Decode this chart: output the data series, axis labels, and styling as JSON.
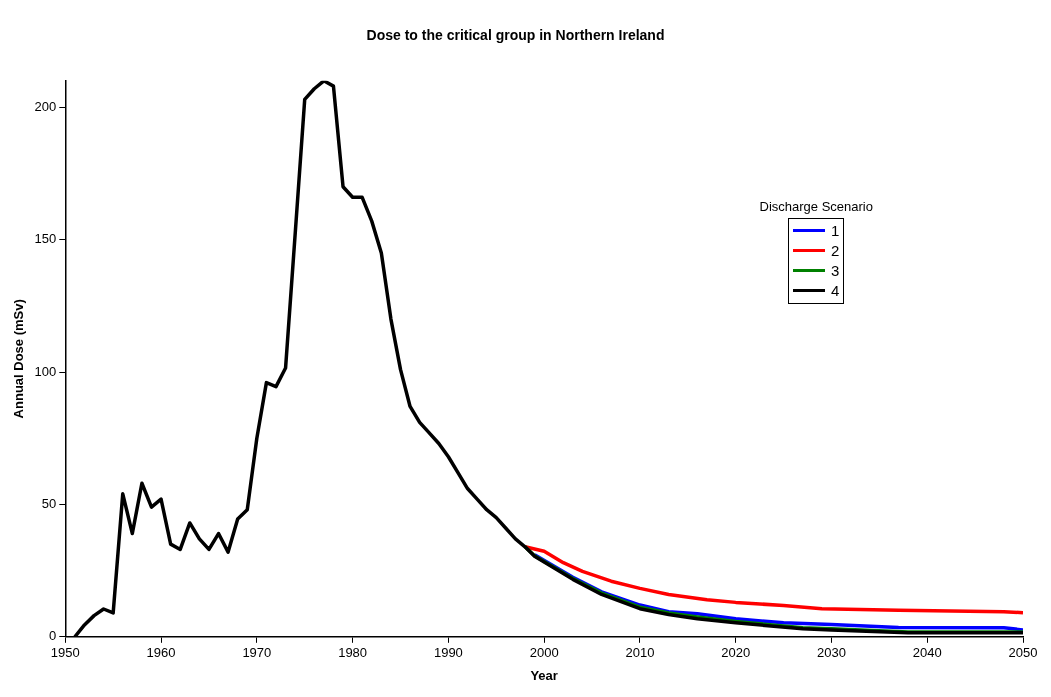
{
  "chart_data": {
    "type": "line",
    "title": "Dose to the critical group in Northern Ireland",
    "xlabel": "Year",
    "ylabel": "Annual Dose (mSv)",
    "legend_title": "Discharge Scenario",
    "legend": "right",
    "grid": false,
    "marker": "none",
    "line_style": "solid",
    "xlim": [
      1950,
      2050
    ],
    "xticks": [
      1950,
      1960,
      1970,
      1980,
      1990,
      2000,
      2010,
      2020,
      2030,
      2040,
      2050
    ],
    "ylim": [
      0,
      210
    ],
    "yticks": [
      0,
      50,
      100,
      150,
      200
    ],
    "series": [
      {
        "name": "1",
        "color": "#0000ff",
        "x": [
          1999,
          2003,
          2006,
          2010,
          2013,
          2016,
          2020,
          2025,
          2030,
          2037,
          2048,
          2050
        ],
        "values": [
          31,
          22.5,
          17,
          12,
          9.5,
          8.7,
          6.8,
          5.3,
          4.6,
          3.5,
          3.4,
          2.6
        ]
      },
      {
        "name": "2",
        "color": "#ff0000",
        "x": [
          1998,
          2000,
          2002,
          2004,
          2007,
          2010,
          2013,
          2017,
          2020,
          2025,
          2029,
          2037,
          2048,
          2050
        ],
        "values": [
          34,
          32.3,
          28,
          24.7,
          21,
          18.3,
          16,
          14,
          13,
          11.8,
          10.6,
          10,
          9.5,
          9.1
        ]
      },
      {
        "name": "3",
        "color": "#008000",
        "x": [
          1998,
          1999,
          2003,
          2006,
          2010,
          2013,
          2016,
          2020,
          2027,
          2030,
          2038,
          2050
        ],
        "values": [
          34,
          30.6,
          22,
          16.5,
          11.2,
          9,
          7.5,
          5.8,
          3.4,
          3,
          1.8,
          1.8
        ]
      },
      {
        "name": "4",
        "color": "#000000",
        "x": [
          1951,
          1952,
          1953,
          1954,
          1955,
          1956,
          1957,
          1958,
          1959,
          1960,
          1961,
          1962,
          1963,
          1964,
          1965,
          1966,
          1967,
          1968,
          1969,
          1970,
          1971,
          1972,
          1973,
          1974,
          1975,
          1976,
          1977,
          1978,
          1979,
          1980,
          1981,
          1982,
          1983,
          1984,
          1985,
          1986,
          1987,
          1988,
          1989,
          1990,
          1991,
          1992,
          1993,
          1994,
          1995,
          1996,
          1997,
          1998,
          1999,
          2003,
          2006,
          2010,
          2013,
          2016,
          2020,
          2027,
          2030,
          2038,
          2050
        ],
        "values": [
          0,
          4.5,
          8,
          10.5,
          9,
          54,
          39,
          58,
          49,
          52,
          35,
          33,
          43,
          37,
          33,
          39,
          32,
          44.5,
          48,
          75,
          96,
          94.5,
          101.5,
          152,
          203,
          207,
          210,
          208,
          170,
          166,
          166,
          157,
          145,
          120,
          101,
          87,
          81,
          77,
          73,
          68,
          62,
          56,
          52,
          48,
          45,
          41,
          37,
          34,
          30.4,
          21.7,
          16,
          10.6,
          8.4,
          6.8,
          5.3,
          3,
          2.6,
          1.5,
          1.5
        ]
      }
    ]
  }
}
